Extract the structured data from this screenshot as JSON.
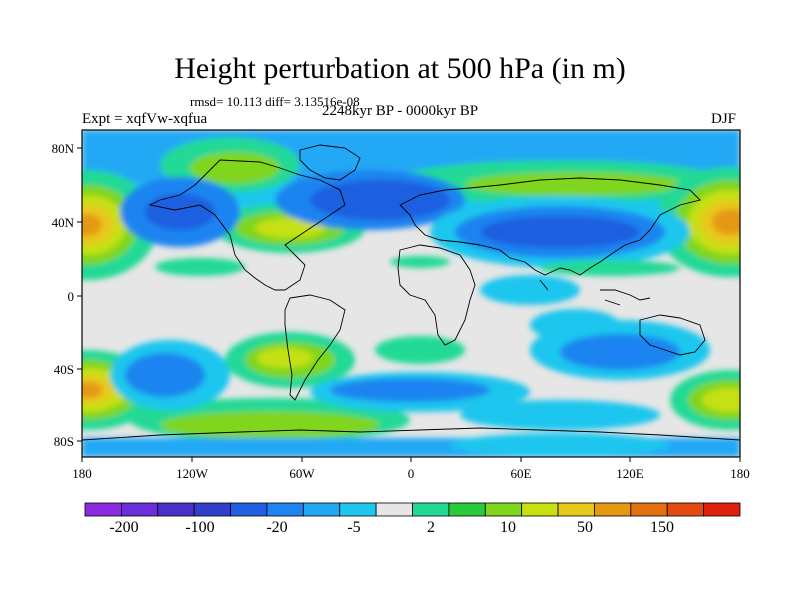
{
  "title": "Height perturbation at 500 hPa (in m)",
  "stats": "rmsd= 10.113 diff= 3.13516e-08",
  "period": "2248kyr BP - 0000kyr BP",
  "expt": "Expt = xqfVw-xqfua",
  "season": "DJF",
  "map": {
    "lat_ticks": [
      "80N",
      "40N",
      "0",
      "40S",
      "80S"
    ],
    "lon_ticks": [
      "180",
      "120W",
      "60W",
      "0",
      "60E",
      "120E",
      "180"
    ]
  },
  "colorbar": {
    "colors": [
      "#8a2be2",
      "#6a2fd9",
      "#4b2fc9",
      "#2f3fc9",
      "#1f5fe0",
      "#1d84f0",
      "#20a8f5",
      "#1fc6ee",
      "#e6e6e6",
      "#24d995",
      "#2acb3a",
      "#7fd61a",
      "#c6e012",
      "#e8c81a",
      "#e59812",
      "#e2700e",
      "#e24a12",
      "#e01e0e"
    ],
    "labels": [
      "-200",
      "-100",
      "-20",
      "-5",
      "2",
      "10",
      "50",
      "150"
    ]
  }
}
